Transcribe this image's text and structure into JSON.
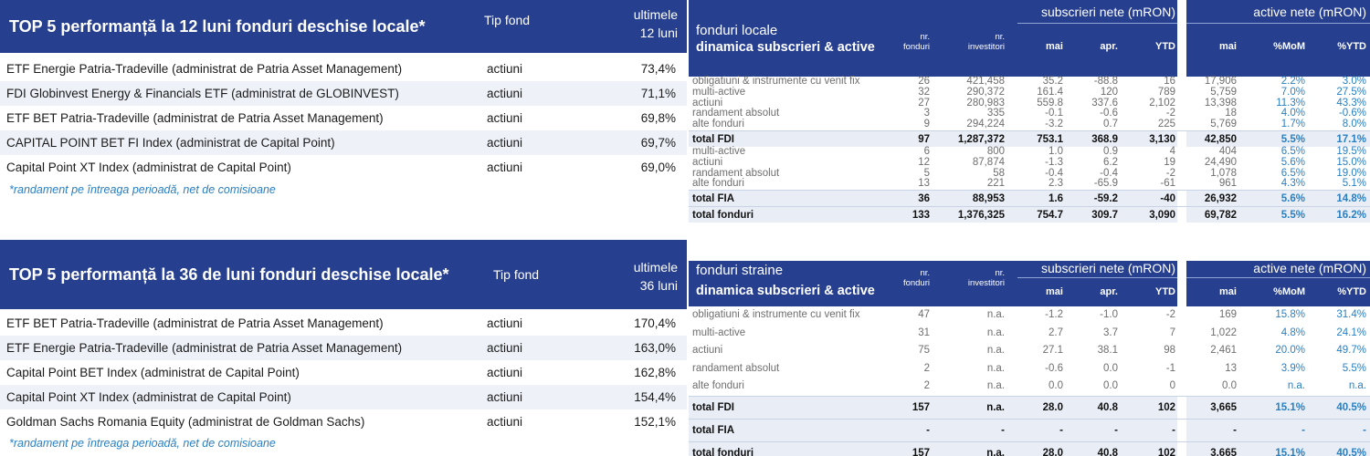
{
  "top5_12": {
    "title": "TOP 5  performanță la 12 luni fonduri deschise locale*",
    "type_header": "Tip fond",
    "period_header_line1": "ultimele",
    "period_header_line2": "12 luni",
    "rows": [
      {
        "name": "ETF Energie Patria-Tradeville (administrat de Patria Asset Management)",
        "type": "actiuni",
        "value": "73,4%"
      },
      {
        "name": "FDI Globinvest Energy & Financials ETF (administrat de GLOBINVEST)",
        "type": "actiuni",
        "value": "71,1%"
      },
      {
        "name": "ETF BET Patria-Tradeville (administrat de Patria Asset Management)",
        "type": "actiuni",
        "value": "69,8%"
      },
      {
        "name": "CAPITAL POINT BET FI Index (administrat de Capital Point)",
        "type": "actiuni",
        "value": "69,7%"
      },
      {
        "name": "Capital Point XT Index (administrat de Capital Point)",
        "type": "actiuni",
        "value": "69,0%"
      }
    ],
    "note": "*randament pe întreaga perioadă, net de comisioane"
  },
  "top5_36": {
    "title": "TOP 5  performanță la 36 de luni fonduri deschise locale*",
    "type_header": "Tip fond",
    "period_header_line1": "ultimele",
    "period_header_line2": "36 luni",
    "rows": [
      {
        "name": "ETF BET Patria-Tradeville (administrat de Patria Asset Management)",
        "type": "actiuni",
        "value": "170,4%"
      },
      {
        "name": "ETF Energie Patria-Tradeville (administrat de Patria Asset Management)",
        "type": "actiuni",
        "value": "163,0%"
      },
      {
        "name": "Capital Point BET Index (administrat de Capital Point)",
        "type": "actiuni",
        "value": "162,8%"
      },
      {
        "name": "Capital Point XT Index (administrat de Capital Point)",
        "type": "actiuni",
        "value": "154,4%"
      },
      {
        "name": "Goldman Sachs Romania Equity (administrat de Goldman Sachs)",
        "type": "actiuni",
        "value": "152,1%"
      }
    ],
    "note": "*randament pe întreaga perioadă, net de comisioane"
  },
  "local_funds": {
    "title_line1": "fonduri locale",
    "title_line2": "dinamica subscrieri & active",
    "group_subscriptions": "subscrieri nete (mRON)",
    "group_assets": "active nete (mRON)",
    "col_funds_1": "nr.",
    "col_funds_2": "fonduri",
    "col_investors_1": "nr.",
    "col_investors_2": "investitori",
    "col_may": "mai",
    "col_apr": "apr.",
    "col_ytd": "YTD",
    "col_assets_may": "mai",
    "col_mom": "%MoM",
    "col_ytd_pct": "%YTD",
    "rows": [
      {
        "label": "obligatiuni & instrumente cu venit fix",
        "funds": "26",
        "investors": "421,458",
        "may": "35.2",
        "apr": "-88.8",
        "ytd": "16",
        "assets": "17,906",
        "mom": "2.2%",
        "ytd_pct": "3.0%",
        "total": false
      },
      {
        "label": "multi-active",
        "funds": "32",
        "investors": "290,372",
        "may": "161.4",
        "apr": "120",
        "ytd": "789",
        "assets": "5,759",
        "mom": "7.0%",
        "ytd_pct": "27.5%",
        "total": false
      },
      {
        "label": "actiuni",
        "funds": "27",
        "investors": "280,983",
        "may": "559.8",
        "apr": "337.6",
        "ytd": "2,102",
        "assets": "13,398",
        "mom": "11.3%",
        "ytd_pct": "43.3%",
        "total": false
      },
      {
        "label": "randament absolut",
        "funds": "3",
        "investors": "335",
        "may": "-0.1",
        "apr": "-0.6",
        "ytd": "-2",
        "assets": "18",
        "mom": "4.0%",
        "ytd_pct": "-0.6%",
        "total": false
      },
      {
        "label": "alte fonduri",
        "funds": "9",
        "investors": "294,224",
        "may": "-3.2",
        "apr": "0.7",
        "ytd": "225",
        "assets": "5,769",
        "mom": "1.7%",
        "ytd_pct": "8.0%",
        "total": false
      },
      {
        "label": "total FDI",
        "funds": "97",
        "investors": "1,287,372",
        "may": "753.1",
        "apr": "368.9",
        "ytd": "3,130",
        "assets": "42,850",
        "mom": "5.5%",
        "ytd_pct": "17.1%",
        "total": true
      },
      {
        "label": "multi-active",
        "funds": "6",
        "investors": "800",
        "may": "1.0",
        "apr": "0.9",
        "ytd": "4",
        "assets": "404",
        "mom": "6.5%",
        "ytd_pct": "19.5%",
        "total": false
      },
      {
        "label": "actiuni",
        "funds": "12",
        "investors": "87,874",
        "may": "-1.3",
        "apr": "6.2",
        "ytd": "19",
        "assets": "24,490",
        "mom": "5.6%",
        "ytd_pct": "15.0%",
        "total": false
      },
      {
        "label": "randament absolut",
        "funds": "5",
        "investors": "58",
        "may": "-0.4",
        "apr": "-0.4",
        "ytd": "-2",
        "assets": "1,078",
        "mom": "6.5%",
        "ytd_pct": "19.0%",
        "total": false
      },
      {
        "label": "alte fonduri",
        "funds": "13",
        "investors": "221",
        "may": "2.3",
        "apr": "-65.9",
        "ytd": "-61",
        "assets": "961",
        "mom": "4.3%",
        "ytd_pct": "5.1%",
        "total": false
      },
      {
        "label": "total FIA",
        "funds": "36",
        "investors": "88,953",
        "may": "1.6",
        "apr": "-59.2",
        "ytd": "-40",
        "assets": "26,932",
        "mom": "5.6%",
        "ytd_pct": "14.8%",
        "total": true
      },
      {
        "label": "total fonduri",
        "funds": "133",
        "investors": "1,376,325",
        "may": "754.7",
        "apr": "309.7",
        "ytd": "3,090",
        "assets": "69,782",
        "mom": "5.5%",
        "ytd_pct": "16.2%",
        "total": true
      }
    ]
  },
  "foreign_funds": {
    "title_line1": "fonduri straine",
    "title_line2": "dinamica subscrieri & active",
    "group_subscriptions": "subscrieri nete (mRON)",
    "group_assets": "active nete (mRON)",
    "col_funds_1": "nr.",
    "col_funds_2": "fonduri",
    "col_investors_1": "nr.",
    "col_investors_2": "investitori",
    "col_may": "mai",
    "col_apr": "apr.",
    "col_ytd": "YTD",
    "col_assets_may": "mai",
    "col_mom": "%MoM",
    "col_ytd_pct": "%YTD",
    "rows": [
      {
        "label": "obligatiuni & instrumente cu venit fix",
        "funds": "47",
        "investors": "n.a.",
        "may": "-1.2",
        "apr": "-1.0",
        "ytd": "-2",
        "assets": "169",
        "mom": "15.8%",
        "ytd_pct": "31.4%",
        "total": false
      },
      {
        "label": "multi-active",
        "funds": "31",
        "investors": "n.a.",
        "may": "2.7",
        "apr": "3.7",
        "ytd": "7",
        "assets": "1,022",
        "mom": "4.8%",
        "ytd_pct": "24.1%",
        "total": false
      },
      {
        "label": "actiuni",
        "funds": "75",
        "investors": "n.a.",
        "may": "27.1",
        "apr": "38.1",
        "ytd": "98",
        "assets": "2,461",
        "mom": "20.0%",
        "ytd_pct": "49.7%",
        "total": false
      },
      {
        "label": "randament absolut",
        "funds": "2",
        "investors": "n.a.",
        "may": "-0.6",
        "apr": "0.0",
        "ytd": "-1",
        "assets": "13",
        "mom": "3.9%",
        "ytd_pct": "5.5%",
        "total": false
      },
      {
        "label": "alte fonduri",
        "funds": "2",
        "investors": "n.a.",
        "may": "0.0",
        "apr": "0.0",
        "ytd": "0",
        "assets": "0.0",
        "mom": "n.a.",
        "ytd_pct": "n.a.",
        "total": false
      },
      {
        "label": "total FDI",
        "funds": "157",
        "investors": "n.a.",
        "may": "28.0",
        "apr": "40.8",
        "ytd": "102",
        "assets": "3,665",
        "mom": "15.1%",
        "ytd_pct": "40.5%",
        "total": true
      },
      {
        "label": "total FIA",
        "funds": "-",
        "investors": "-",
        "may": "-",
        "apr": "-",
        "ytd": "-",
        "assets": "-",
        "mom": "-",
        "ytd_pct": "-",
        "total": true
      },
      {
        "label": "total fonduri",
        "funds": "157",
        "investors": "n.a.",
        "may": "28.0",
        "apr": "40.8",
        "ytd": "102",
        "assets": "3,665",
        "mom": "15.1%",
        "ytd_pct": "40.5%",
        "total": true
      }
    ]
  }
}
